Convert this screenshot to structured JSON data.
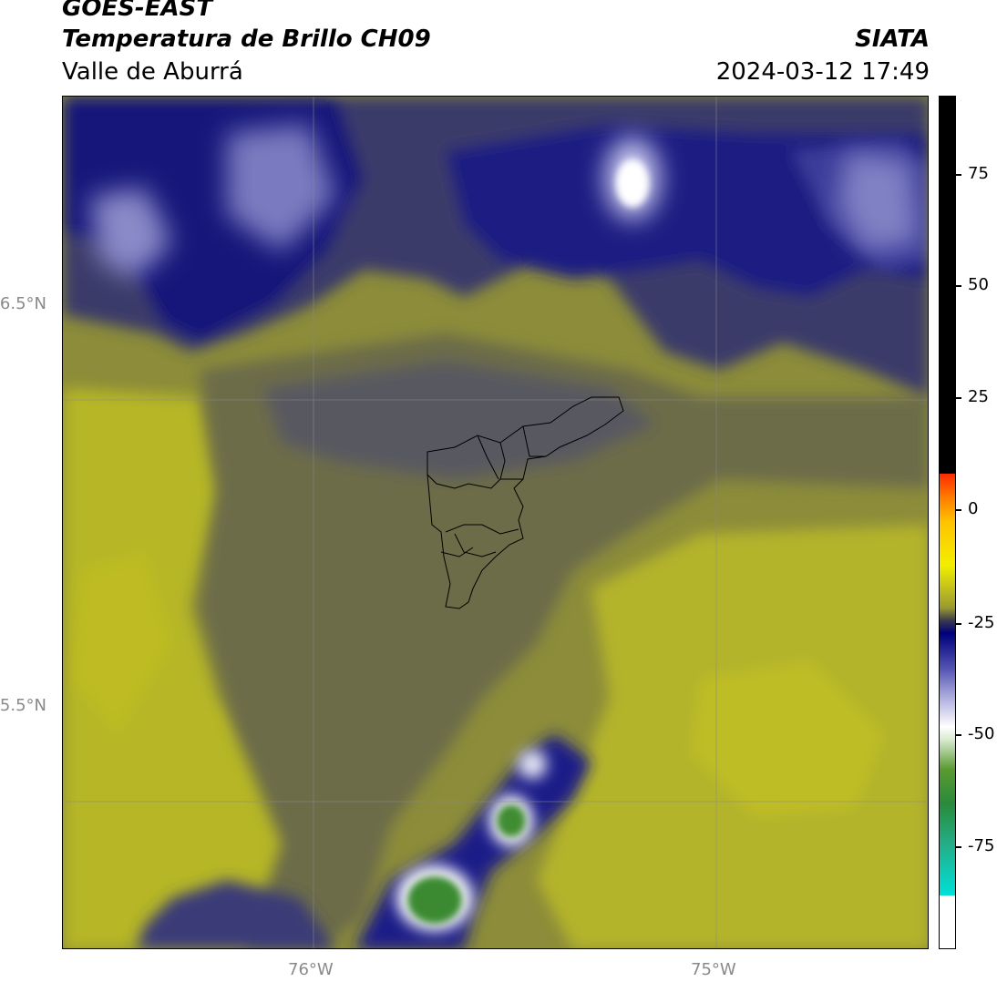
{
  "header": {
    "title_line1": "GOES-EAST",
    "title_line2": "Temperatura de Brillo CH09",
    "region": "Valle de Aburrá",
    "organization": "SIATA",
    "timestamp": "2024-03-12 17:49"
  },
  "map": {
    "lat_labels": [
      "6.5°N",
      "5.5°N"
    ],
    "lon_labels": [
      "76°W",
      "75°W"
    ],
    "gridlines": true
  },
  "colorbar": {
    "ticks": [
      "75",
      "50",
      "25",
      "0",
      "-25",
      "-50",
      "-75"
    ],
    "colors": {
      "black": "#000000",
      "red": "#ff2a00",
      "orange": "#ff7a00",
      "yellow": "#f2ee00",
      "olive": "#9a9a32",
      "navy": "#00007a",
      "white": "#ffffff",
      "green": "#2a8a3a",
      "cyan": "#00e0d8"
    }
  }
}
